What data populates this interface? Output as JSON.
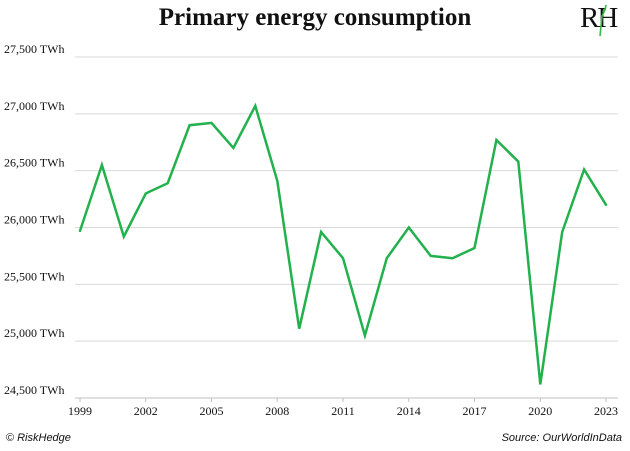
{
  "header": {
    "title": "Primary energy consumption",
    "logo_text": "RH"
  },
  "footer": {
    "copyright_symbol": "©",
    "left": "RiskHedge",
    "right": "Source: OurWorldInData"
  },
  "colors": {
    "line": "#22b14c",
    "grid": "#d9d9d9",
    "text": "#111111",
    "logo_accent": "#3cb44b"
  },
  "chart_data": {
    "type": "line",
    "title": "Primary energy consumption",
    "xlabel": "",
    "ylabel": "",
    "ylim": [
      24500,
      27500
    ],
    "xlim": [
      1999,
      2023
    ],
    "grid": "horizontal",
    "x": [
      1999,
      2000,
      2001,
      2002,
      2003,
      2004,
      2005,
      2006,
      2007,
      2008,
      2009,
      2010,
      2011,
      2012,
      2013,
      2014,
      2015,
      2016,
      2017,
      2018,
      2019,
      2020,
      2021,
      2022,
      2023
    ],
    "series": [
      {
        "values": [
          25970,
          26550,
          25920,
          26300,
          26390,
          26900,
          26920,
          26700,
          27070,
          26410,
          25110,
          25960,
          25730,
          25050,
          25730,
          26000,
          25750,
          25730,
          25820,
          26770,
          26580,
          24620,
          25960,
          26510,
          26200
        ]
      }
    ],
    "y_ticks": [
      {
        "value": 24500,
        "label": "24,500 TWh"
      },
      {
        "value": 25000,
        "label": "25,000 TWh"
      },
      {
        "value": 25500,
        "label": "25,500 TWh"
      },
      {
        "value": 26000,
        "label": "26,000 TWh"
      },
      {
        "value": 26500,
        "label": "26,500 TWh"
      },
      {
        "value": 27000,
        "label": "27,000 TWh"
      },
      {
        "value": 27500,
        "label": "27,500 TWh"
      }
    ],
    "x_ticks": [
      {
        "value": 1999,
        "label": "1999"
      },
      {
        "value": 2002,
        "label": "2002"
      },
      {
        "value": 2005,
        "label": "2005"
      },
      {
        "value": 2008,
        "label": "2008"
      },
      {
        "value": 2011,
        "label": "2011"
      },
      {
        "value": 2014,
        "label": "2014"
      },
      {
        "value": 2017,
        "label": "2017"
      },
      {
        "value": 2020,
        "label": "2020"
      },
      {
        "value": 2023,
        "label": "2023"
      }
    ]
  }
}
